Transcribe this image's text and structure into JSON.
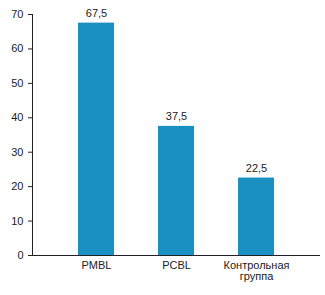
{
  "chart_data": {
    "type": "bar",
    "categories": [
      "PMBL",
      "PCBL",
      "Контрольная группа"
    ],
    "values": [
      67.5,
      37.5,
      22.5
    ],
    "value_labels": [
      "67,5",
      "37,5",
      "22,5"
    ],
    "color": "#1a8fc1",
    "ylim": [
      0,
      70
    ],
    "yticks": [
      0,
      10,
      20,
      30,
      40,
      50,
      60,
      70
    ],
    "grid": false,
    "data_labels": true
  }
}
